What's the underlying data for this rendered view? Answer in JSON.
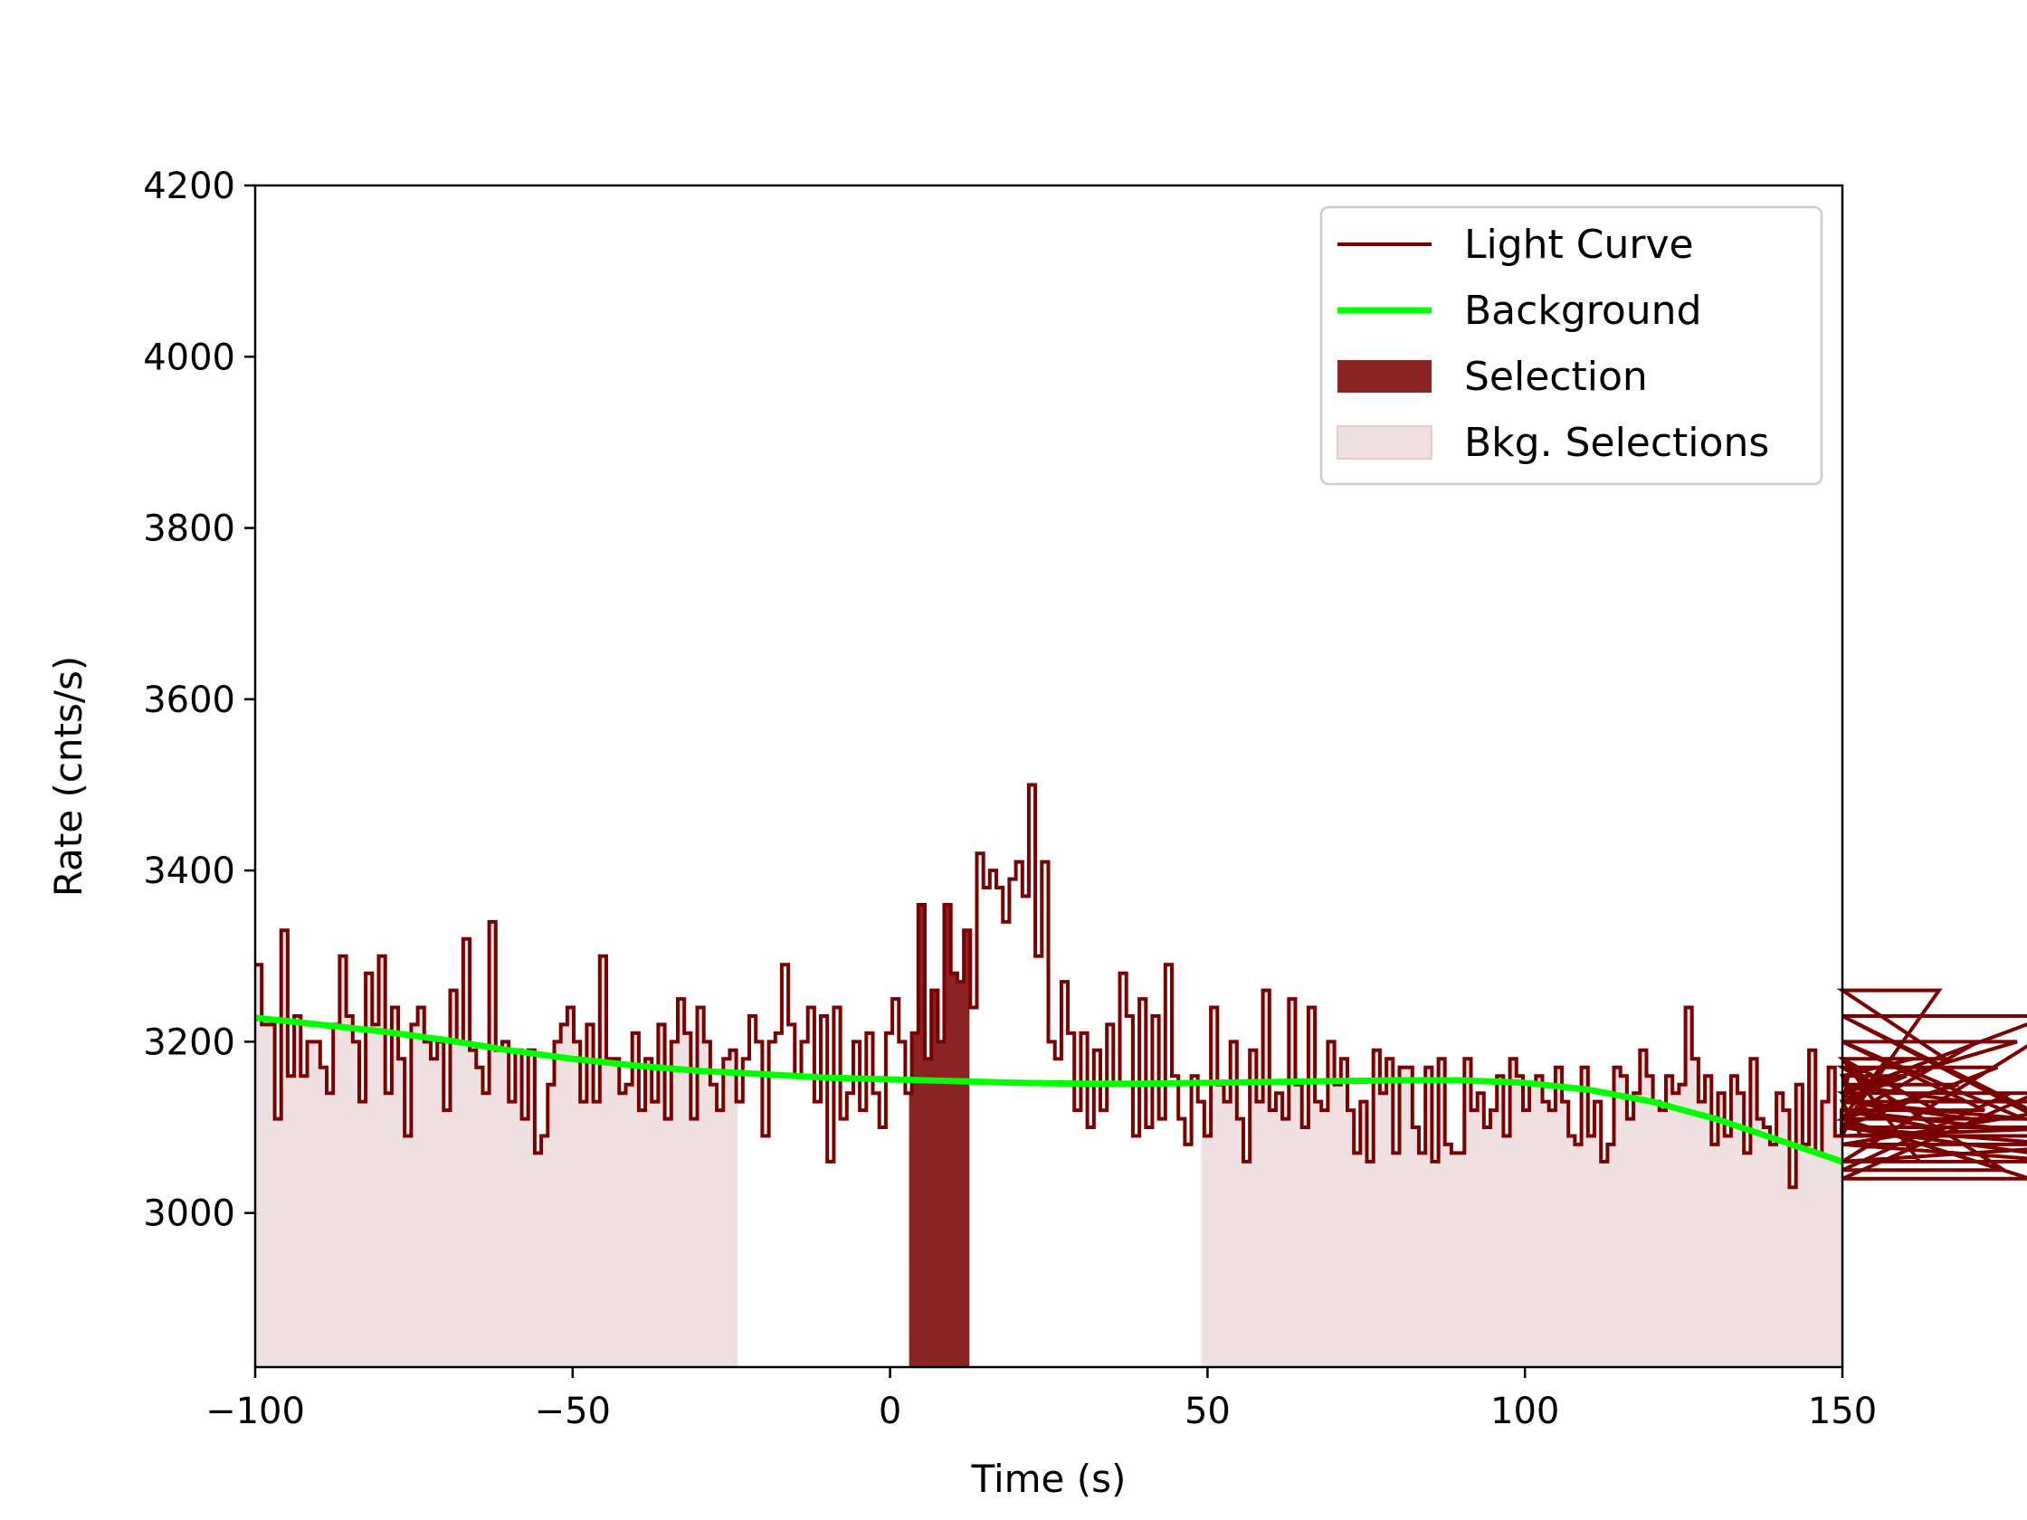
{
  "chart_data": {
    "type": "line",
    "title": "",
    "xlabel": "Time (s)",
    "ylabel": "Rate (cnts/s)",
    "xlim": [
      -100,
      150
    ],
    "ylim": [
      2820,
      4200
    ],
    "xticks": [
      -100,
      -50,
      0,
      50,
      100,
      150
    ],
    "xtick_labels": [
      "−100",
      "−50",
      "0",
      "50",
      "100",
      "150"
    ],
    "yticks": [
      3000,
      3200,
      3400,
      3600,
      3800,
      4000,
      4200
    ],
    "ytick_labels": [
      "3000",
      "3200",
      "3400",
      "3600",
      "3800",
      "4000",
      "4200"
    ],
    "grid": false,
    "legend_position": "top-right",
    "colors": {
      "light_curve": "#7b0000",
      "background": "#00ff00",
      "selection": "#8b2323",
      "bkg_selection": "#efe1e1"
    },
    "legend": [
      {
        "label": "Light Curve",
        "kind": "line",
        "color": "#7b0000"
      },
      {
        "label": "Background",
        "kind": "line",
        "color": "#00ff00"
      },
      {
        "label": "Selection",
        "kind": "patch",
        "color": "#8b2323"
      },
      {
        "label": "Bkg. Selections",
        "kind": "patch",
        "color": "#efe1e1"
      }
    ],
    "bkg_selections": [
      [
        -100,
        -24
      ],
      [
        49,
        150
      ]
    ],
    "selection": [
      3,
      12.5
    ],
    "light_curve": {
      "name": "Light Curve",
      "bin_start": -100,
      "bin_width": 1.024,
      "values": [
        3290,
        3220,
        3220,
        3110,
        3330,
        3160,
        3230,
        3160,
        3200,
        3200,
        3170,
        3140,
        3220,
        3300,
        3230,
        3200,
        3130,
        3280,
        3220,
        3300,
        3140,
        3240,
        3180,
        3090,
        3220,
        3240,
        3200,
        3180,
        3200,
        3120,
        3260,
        3200,
        3320,
        3190,
        3170,
        3140,
        3340,
        3190,
        3200,
        3130,
        3190,
        3110,
        3190,
        3070,
        3090,
        3150,
        3200,
        3220,
        3240,
        3200,
        3130,
        3220,
        3130,
        3300,
        3180,
        3180,
        3140,
        3150,
        3210,
        3120,
        3180,
        3130,
        3220,
        3110,
        3200,
        3250,
        3210,
        3110,
        3240,
        3200,
        3150,
        3120,
        3180,
        3190,
        3130,
        3180,
        3230,
        3200,
        3090,
        3200,
        3210,
        3290,
        3220,
        3160,
        3200,
        3240,
        3130,
        3230,
        3060,
        3240,
        3110,
        3140,
        3200,
        3120,
        3210,
        3140,
        3100,
        3210,
        3250,
        3200,
        3140,
        3210,
        3360,
        3180,
        3260,
        3200,
        3360,
        3280,
        3270,
        3330,
        3240,
        3420,
        3380,
        3400,
        3380,
        3340,
        3390,
        3410,
        3370,
        3500,
        3300,
        3410,
        3200,
        3180,
        3270,
        3210,
        3120,
        3210,
        3100,
        3190,
        3120,
        3220,
        3150,
        3280,
        3230,
        3090,
        3250,
        3100,
        3230,
        3110,
        3290,
        3160,
        3110,
        3080,
        3160,
        3130,
        3090,
        3240,
        3150,
        3130,
        3200,
        3110,
        3060,
        3190,
        3130,
        3260,
        3120,
        3140,
        3110,
        3250,
        3150,
        3100,
        3240,
        3130,
        3120,
        3200,
        3150,
        3180,
        3120,
        3070,
        3130,
        3060,
        3190,
        3140,
        3180,
        3070,
        3170,
        3170,
        3100,
        3070,
        3170,
        3060,
        3180,
        3080,
        3070,
        3070,
        3180,
        3120,
        3140,
        3100,
        3120,
        3160,
        3090,
        3180,
        3160,
        3120,
        3150,
        3160,
        3130,
        3120,
        3170,
        3130,
        3090,
        3080,
        3170,
        3090,
        3130,
        3060,
        3080,
        3170,
        3160,
        3110,
        3140,
        3190,
        3160,
        3130,
        3120,
        3160,
        3140,
        3150,
        3240,
        3180,
        3130,
        3160,
        3080,
        3140,
        3090,
        3160,
        3140,
        3070,
        3180,
        3110,
        3100,
        3080,
        3140,
        3120,
        3030,
        3150,
        3080,
        3190,
        3070,
        3130,
        3170,
        3090,
        3120,
        3160,
        3130,
        3090,
        3150,
        3140,
        3110,
        3180,
        3130,
        3130,
        3160,
        3180,
        3060,
        3120,
        3100,
        3260,
        3180,
        3110,
        3150,
        3130,
        3110,
        3200,
        3120,
        3100,
        3170,
        3050,
        3140,
        3200,
        3110,
        3040,
        3140,
        3140,
        3230,
        3100,
        3080,
        3060,
        3230,
        3090,
        3100,
        3060,
        3080,
        3130,
        3100
      ]
    },
    "background": {
      "name": "Background",
      "x": [
        -100,
        -90,
        -80,
        -70,
        -60,
        -50,
        -40,
        -30,
        -20,
        -10,
        0,
        10,
        20,
        30,
        40,
        50,
        60,
        70,
        80,
        90,
        100,
        110,
        120,
        130,
        140,
        150
      ],
      "y": [
        3228,
        3220,
        3212,
        3202,
        3190,
        3180,
        3172,
        3166,
        3162,
        3158,
        3156,
        3154,
        3152,
        3151,
        3151,
        3152,
        3153,
        3154,
        3155,
        3155,
        3152,
        3144,
        3130,
        3110,
        3085,
        3060
      ]
    }
  }
}
